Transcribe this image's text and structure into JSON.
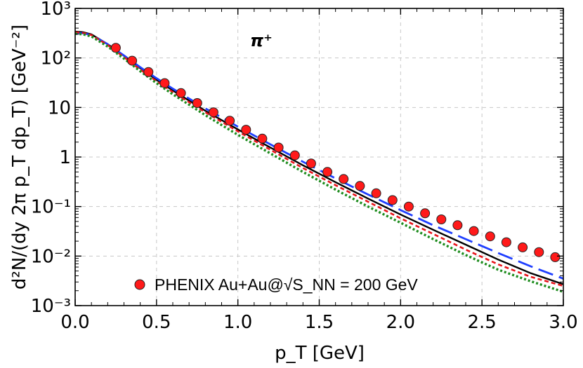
{
  "chart_data": {
    "type": "scatter",
    "title": "",
    "xlabel": "p_T [GeV]",
    "ylabel": "d²N/(dy 2π p_T dp_T) [GeV⁻²]",
    "annotation": "π⁺",
    "xlim": [
      0.0,
      3.0
    ],
    "ylim": [
      0.001,
      1000
    ],
    "yscale": "log",
    "grid": true,
    "legend_position": "bottom-left",
    "x_ticks": [
      "0.0",
      "0.5",
      "1.0",
      "1.5",
      "2.0",
      "2.5",
      "3.0"
    ],
    "y_ticks": [
      "10⁻³",
      "10⁻²",
      "10⁻¹",
      "1",
      "10",
      "10²",
      "10³"
    ],
    "series": [
      {
        "name": "PHENIX Au+Au@√S_NN = 200 GeV",
        "kind": "points",
        "color": "#ff1a1a",
        "x": [
          0.25,
          0.35,
          0.45,
          0.55,
          0.65,
          0.75,
          0.85,
          0.95,
          1.05,
          1.15,
          1.25,
          1.35,
          1.45,
          1.55,
          1.65,
          1.75,
          1.85,
          1.95,
          2.05,
          2.15,
          2.25,
          2.35,
          2.45,
          2.55,
          2.65,
          2.75,
          2.85,
          2.95
        ],
        "y": [
          160,
          88,
          52,
          31,
          19.5,
          12.3,
          8.0,
          5.4,
          3.55,
          2.35,
          1.55,
          1.08,
          0.74,
          0.5,
          0.36,
          0.26,
          0.185,
          0.135,
          0.1,
          0.073,
          0.055,
          0.042,
          0.032,
          0.025,
          0.019,
          0.015,
          0.012,
          0.0095
        ]
      },
      {
        "kind": "line",
        "style": "solid",
        "color": "#000000",
        "x": [
          0.0,
          0.05,
          0.1,
          0.2,
          0.3,
          0.4,
          0.5,
          0.6,
          0.8,
          1.0,
          1.2,
          1.4,
          1.6,
          1.8,
          2.0,
          2.2,
          2.4,
          2.6,
          2.8,
          3.0
        ],
        "y": [
          340,
          330,
          300,
          190,
          110,
          62,
          36,
          22,
          8.6,
          3.6,
          1.55,
          0.68,
          0.31,
          0.145,
          0.069,
          0.034,
          0.017,
          0.0085,
          0.0045,
          0.0027
        ]
      },
      {
        "kind": "line",
        "style": "long-dash",
        "color": "#1f3fff",
        "x": [
          0.0,
          0.05,
          0.1,
          0.2,
          0.3,
          0.4,
          0.5,
          0.6,
          0.8,
          1.0,
          1.2,
          1.4,
          1.6,
          1.8,
          2.0,
          2.2,
          2.4,
          2.6,
          2.8,
          3.0
        ],
        "y": [
          320,
          315,
          290,
          190,
          112,
          65,
          39,
          24,
          9.6,
          4.1,
          1.8,
          0.8,
          0.37,
          0.175,
          0.085,
          0.042,
          0.022,
          0.0115,
          0.0062,
          0.0035
        ]
      },
      {
        "kind": "line",
        "style": "dashed",
        "color": "#e8141a",
        "x": [
          0.0,
          0.05,
          0.1,
          0.2,
          0.3,
          0.4,
          0.5,
          0.6,
          0.8,
          1.0,
          1.2,
          1.4,
          1.6,
          1.8,
          2.0,
          2.2,
          2.4,
          2.6,
          2.8,
          3.0
        ],
        "y": [
          330,
          320,
          290,
          182,
          104,
          58,
          34,
          20.5,
          8.0,
          3.3,
          1.4,
          0.6,
          0.27,
          0.125,
          0.058,
          0.028,
          0.0135,
          0.0068,
          0.0038,
          0.0025
        ]
      },
      {
        "kind": "line",
        "style": "dotted",
        "color": "#1e8c1e",
        "x": [
          0.0,
          0.05,
          0.1,
          0.2,
          0.3,
          0.4,
          0.5,
          0.6,
          0.8,
          1.0,
          1.2,
          1.4,
          1.6,
          1.8,
          2.0,
          2.2,
          2.4,
          2.6,
          2.8,
          3.0
        ],
        "y": [
          310,
          300,
          272,
          170,
          97,
          54,
          31,
          18.5,
          7.0,
          2.8,
          1.18,
          0.5,
          0.22,
          0.1,
          0.047,
          0.022,
          0.0105,
          0.0053,
          0.0031,
          0.0019
        ]
      }
    ]
  }
}
